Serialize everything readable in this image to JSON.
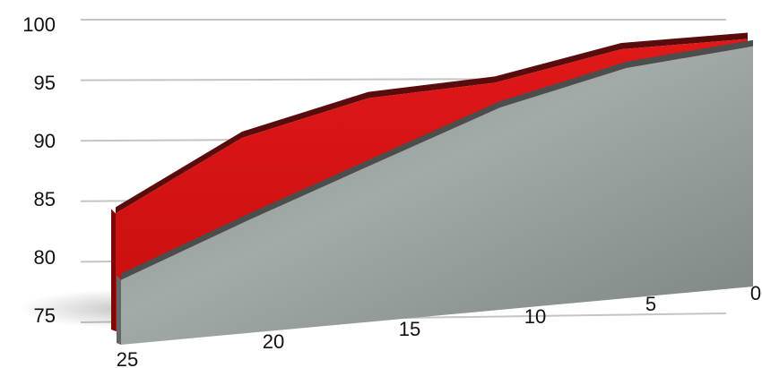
{
  "chart_data": {
    "type": "area",
    "title": "",
    "xlabel": "",
    "ylabel": "",
    "x": [
      25,
      20,
      15,
      10,
      5,
      0
    ],
    "series": [
      {
        "values": [
          84,
          90,
          93.2,
          94.4,
          97.3,
          98.2
        ],
        "color": "#d81212"
      },
      {
        "values": [
          78.5,
          83,
          87.5,
          92.2,
          95.6,
          97.5
        ],
        "color": "#8e9694"
      }
    ],
    "ylim": [
      75,
      100
    ],
    "xlim": [
      25,
      0
    ],
    "yticks": [
      "75",
      "80",
      "85",
      "90",
      "95",
      "100"
    ],
    "xticks": [
      "25",
      "20",
      "15",
      "10",
      "5",
      "0"
    ],
    "grid": true,
    "legend": "none",
    "style": "3d-perspective"
  }
}
